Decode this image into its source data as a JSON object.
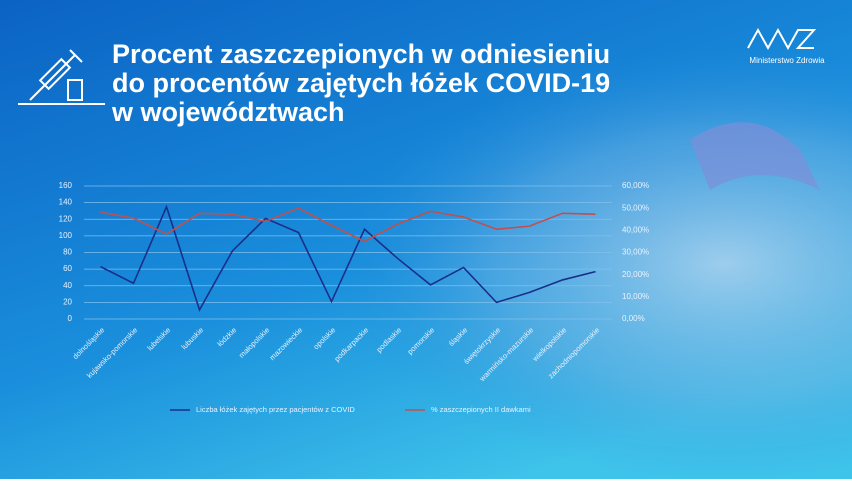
{
  "logo": "Ministerstwo Zdrowia",
  "chart_data": {
    "type": "line",
    "title_lines": [
      "Procent zaszczepionych w odniesieniu",
      "do procentów zajętych łóżek COVID-19",
      "w województwach"
    ],
    "categories": [
      "dolnośląskie",
      "kujawsko-pomorskie",
      "lubelskie",
      "lubuskie",
      "łódzkie",
      "małopolskie",
      "mazowieckie",
      "opolskie",
      "podkarpackie",
      "podlaskie",
      "pomorskie",
      "śląskie",
      "świętokrzyskie",
      "warmińsko-mazurskie",
      "wielkopolskie",
      "zachodniopomorskie"
    ],
    "series": [
      {
        "name": "Liczba łóżek zajętych przez pacjentów z COVID",
        "color": "#1a2e8a",
        "values": [
          63,
          43,
          135,
          11,
          82,
          121,
          104,
          21,
          108,
          73,
          41,
          62,
          20,
          32,
          47,
          57
        ]
      },
      {
        "name": "% zaszczepionych II dawkami",
        "color": "#c0504d",
        "axis": "y2",
        "values": [
          48.2,
          45.5,
          38.3,
          47.7,
          47.3,
          44,
          50,
          42.3,
          35,
          42.8,
          48.6,
          46,
          40.5,
          41.9,
          47.7,
          47.3
        ]
      }
    ],
    "ylim": [
      0,
      160
    ],
    "yticks": [
      0,
      20,
      40,
      60,
      80,
      100,
      120,
      140,
      160
    ],
    "y2lim": [
      0,
      60
    ],
    "y2ticks": [
      {
        "value": 0,
        "label": "0,00%"
      },
      {
        "value": 10,
        "label": "10,00%"
      },
      {
        "value": 20,
        "label": "20,00%"
      },
      {
        "value": 30,
        "label": "30,00%"
      },
      {
        "value": 40,
        "label": "40,00%"
      },
      {
        "value": 50,
        "label": "50,00%"
      },
      {
        "value": 60,
        "label": "60,00%"
      }
    ],
    "grid": true,
    "legend": "bottom"
  }
}
